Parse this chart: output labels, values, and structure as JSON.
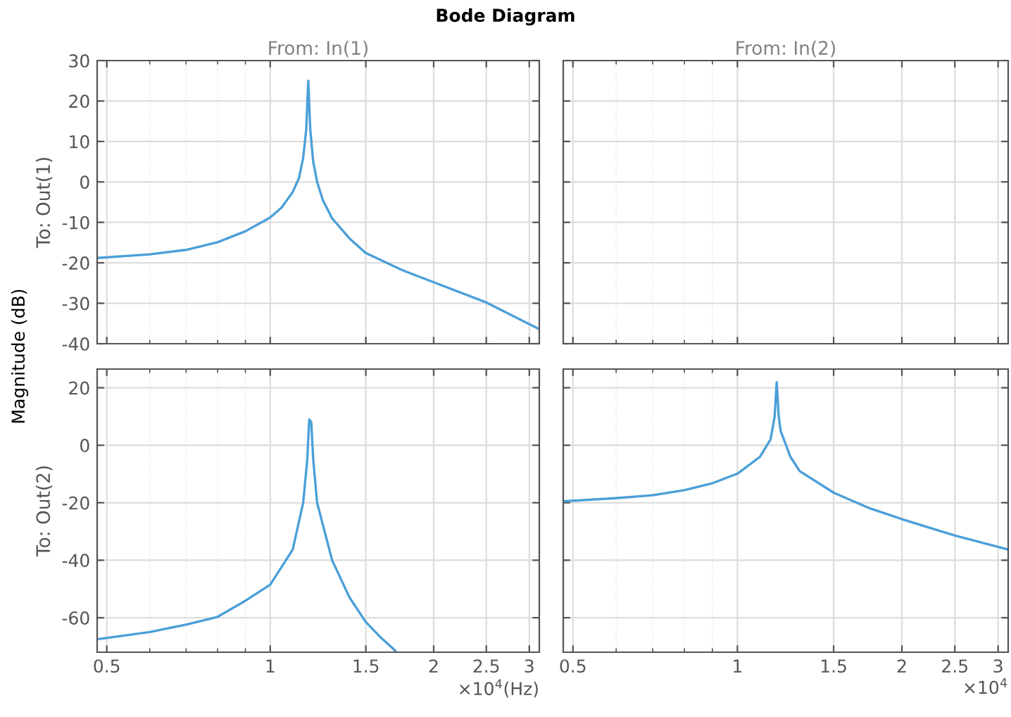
{
  "chart_data": [
    {
      "type": "line",
      "title": "From: In(1)",
      "ylabel": "To: Out(1)",
      "annotations": [
        "Bode Diagram",
        "Magnitude (dB)"
      ],
      "log": "x",
      "grid": true,
      "tick_labels": "y",
      "xlim": [
        0.48,
        3.13
      ],
      "xticks": [
        0.5,
        1,
        1.5,
        2,
        2.5,
        3
      ],
      "ylim": [
        -40,
        30
      ],
      "yticks": [
        -40,
        -30,
        -20,
        -10,
        0,
        10,
        20,
        30
      ],
      "series": [
        {
          "color": "#4a9fd8",
          "x": [
            0.48,
            0.6,
            0.7,
            0.8,
            0.9,
            1.0,
            1.05,
            1.1,
            1.13,
            1.15,
            1.165,
            1.175,
            1.185,
            1.2,
            1.22,
            1.25,
            1.3,
            1.4,
            1.5,
            1.75,
            2.0,
            2.5,
            3.13
          ],
          "values": [
            -18.8,
            -17.9,
            -16.8,
            -14.9,
            -12.2,
            -8.8,
            -6.3,
            -2.5,
            1,
            6,
            13,
            25,
            13,
            5,
            0,
            -4.5,
            -9,
            -14,
            -17.6,
            -21.8,
            -24.8,
            -29.8,
            -36.4
          ]
        }
      ]
    },
    {
      "type": "line",
      "title": "From: In(2)",
      "log": "x",
      "grid": true,
      "tick_labels": false,
      "xlim": [
        0.48,
        3.13
      ],
      "xticks": [
        0.5,
        1,
        1.5,
        2,
        2.5,
        3
      ],
      "ylim": [
        -40,
        30
      ],
      "yticks": [
        -40,
        -30,
        -20,
        -10,
        0,
        10,
        20,
        30
      ]
    },
    {
      "type": "line",
      "ylabel": "To: Out(2)",
      "annotations": [
        "×10$^{4}$(Hz)"
      ],
      "log": "x",
      "grid": true,
      "xlim": [
        0.48,
        3.13
      ],
      "xticks": [
        0.5,
        1,
        1.5,
        2,
        2.5,
        3
      ],
      "ylim": [
        -72,
        26.5
      ],
      "yticks": [
        -60,
        -40,
        -20,
        0,
        20
      ],
      "series": [
        {
          "color": "#4a9fd8",
          "x": [
            0.48,
            0.6,
            0.7,
            0.8,
            0.9,
            1.0,
            1.1,
            1.15,
            1.17,
            1.18,
            1.19,
            1.2,
            1.22,
            1.3,
            1.4,
            1.5,
            1.6,
            1.7
          ],
          "values": [
            -67.5,
            -65,
            -62.4,
            -59.7,
            -54.1,
            -48.5,
            -36.3,
            -20,
            -5,
            9,
            8,
            -5,
            -20,
            -40,
            -53,
            -61.5,
            -67,
            -71.5
          ]
        }
      ]
    },
    {
      "type": "line",
      "annotations": [
        "×10$^{4}$"
      ],
      "log": "x",
      "grid": true,
      "tick_labels": "x",
      "xlim": [
        0.48,
        3.13
      ],
      "xticks": [
        0.5,
        1,
        1.5,
        2,
        2.5,
        3
      ],
      "ylim": [
        -72,
        26.5
      ],
      "yticks": [
        -60,
        -40,
        -20,
        0,
        20
      ],
      "series": [
        {
          "color": "#4a9fd8",
          "x": [
            0.48,
            0.6,
            0.7,
            0.8,
            0.9,
            1.0,
            1.1,
            1.15,
            1.17,
            1.18,
            1.19,
            1.2,
            1.25,
            1.3,
            1.5,
            1.75,
            2.0,
            2.5,
            3.13
          ],
          "values": [
            -19.5,
            -18.4,
            -17.4,
            -15.6,
            -13.2,
            -9.9,
            -4,
            2,
            10,
            22,
            10,
            5,
            -4,
            -9,
            -16.5,
            -22,
            -25.7,
            -31.4,
            -36.3
          ]
        }
      ]
    }
  ]
}
